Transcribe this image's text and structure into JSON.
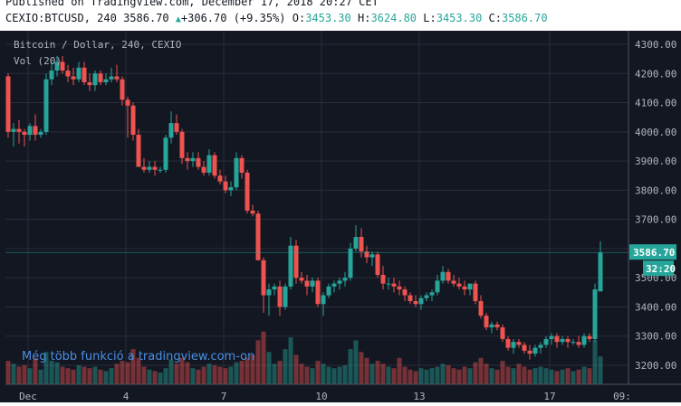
{
  "header": {
    "published": "Published on TradingView.com, December 17, 2018 20:27 CET",
    "symbol": "CEXIO:BTCUSD, 240",
    "last": "3586.70",
    "change": "+306.70 (+9.35%)",
    "o_label": "O:",
    "o": "3453.30",
    "h_label": "H:",
    "h": "3624.80",
    "l_label": "L:",
    "l": "3453.30",
    "c_label": "C:",
    "c": "3586.70"
  },
  "legend": {
    "title": "Bitcoin / Dollar, 240, CEXIO",
    "volume": "Vol (20)"
  },
  "watermark": "Még több funkció a tradingview.com-on",
  "colors": {
    "up": "#26a69a",
    "down": "#ef5350",
    "background": "#131722",
    "grid": "#2a2e39",
    "text": "#b2b5be"
  },
  "chart_data": {
    "type": "candlestick",
    "y_ticks": [
      3200,
      3300,
      3400,
      3500,
      3600,
      3700,
      3800,
      3900,
      4000,
      4100,
      4200,
      4300
    ],
    "y_tick_labels": [
      "3200.00",
      "3300.00",
      "3400.00",
      "3500.00",
      "3600.00",
      "3700.00",
      "3800.00",
      "3900.00",
      "4000.00",
      "4100.00",
      "4200.00",
      "4300.00"
    ],
    "ylim": [
      3135,
      4340
    ],
    "x_tick_labels": [
      "Dec",
      "4",
      "7",
      "10",
      "13",
      "17",
      "09:"
    ],
    "last_price": "3586.70",
    "last_price_value": 3586.7,
    "countdown": "32:20",
    "ohlc": [
      [
        4190,
        4200,
        3980,
        4000
      ],
      [
        4000,
        4030,
        3950,
        4010
      ],
      [
        4010,
        4040,
        3960,
        4000
      ],
      [
        4000,
        4010,
        3950,
        3990
      ],
      [
        3990,
        4030,
        3970,
        4020
      ],
      [
        4020,
        4060,
        3970,
        3990
      ],
      [
        3990,
        4010,
        3980,
        4000
      ],
      [
        4000,
        4200,
        3990,
        4180
      ],
      [
        4180,
        4240,
        4160,
        4210
      ],
      [
        4210,
        4260,
        4190,
        4240
      ],
      [
        4240,
        4260,
        4200,
        4210
      ],
      [
        4210,
        4230,
        4170,
        4190
      ],
      [
        4190,
        4220,
        4160,
        4180
      ],
      [
        4180,
        4240,
        4170,
        4220
      ],
      [
        4220,
        4240,
        4160,
        4170
      ],
      [
        4170,
        4200,
        4140,
        4160
      ],
      [
        4160,
        4210,
        4140,
        4200
      ],
      [
        4200,
        4210,
        4160,
        4170
      ],
      [
        4170,
        4200,
        4160,
        4180
      ],
      [
        4180,
        4220,
        4170,
        4190
      ],
      [
        4190,
        4230,
        4170,
        4180
      ],
      [
        4180,
        4190,
        4090,
        4110
      ],
      [
        4110,
        4120,
        3980,
        4090
      ],
      [
        4090,
        4100,
        3970,
        3990
      ],
      [
        3990,
        4010,
        3880,
        3880
      ],
      [
        3880,
        3910,
        3860,
        3870
      ],
      [
        3870,
        3900,
        3860,
        3880
      ],
      [
        3880,
        3900,
        3850,
        3870
      ],
      [
        3870,
        3880,
        3860,
        3870
      ],
      [
        3870,
        3990,
        3860,
        3980
      ],
      [
        3980,
        4070,
        3960,
        4030
      ],
      [
        4030,
        4060,
        3990,
        4000
      ],
      [
        4000,
        4010,
        3890,
        3910
      ],
      [
        3910,
        3930,
        3870,
        3900
      ],
      [
        3900,
        3930,
        3880,
        3910
      ],
      [
        3910,
        3930,
        3870,
        3880
      ],
      [
        3880,
        3900,
        3850,
        3860
      ],
      [
        3860,
        3940,
        3850,
        3920
      ],
      [
        3920,
        3930,
        3840,
        3850
      ],
      [
        3850,
        3870,
        3820,
        3830
      ],
      [
        3830,
        3850,
        3790,
        3800
      ],
      [
        3800,
        3830,
        3780,
        3810
      ],
      [
        3810,
        3930,
        3800,
        3910
      ],
      [
        3910,
        3920,
        3840,
        3860
      ],
      [
        3860,
        3870,
        3720,
        3730
      ],
      [
        3730,
        3750,
        3710,
        3720
      ],
      [
        3720,
        3730,
        3560,
        3560
      ],
      [
        3560,
        3570,
        3380,
        3440
      ],
      [
        3440,
        3480,
        3370,
        3460
      ],
      [
        3460,
        3480,
        3440,
        3470
      ],
      [
        3470,
        3490,
        3370,
        3400
      ],
      [
        3400,
        3480,
        3390,
        3470
      ],
      [
        3470,
        3640,
        3460,
        3610
      ],
      [
        3610,
        3630,
        3480,
        3500
      ],
      [
        3500,
        3520,
        3480,
        3490
      ],
      [
        3490,
        3510,
        3440,
        3470
      ],
      [
        3470,
        3500,
        3450,
        3490
      ],
      [
        3490,
        3500,
        3400,
        3410
      ],
      [
        3410,
        3450,
        3370,
        3440
      ],
      [
        3440,
        3480,
        3430,
        3470
      ],
      [
        3470,
        3490,
        3450,
        3480
      ],
      [
        3480,
        3500,
        3460,
        3490
      ],
      [
        3490,
        3520,
        3470,
        3500
      ],
      [
        3500,
        3620,
        3490,
        3600
      ],
      [
        3600,
        3680,
        3590,
        3640
      ],
      [
        3640,
        3670,
        3570,
        3590
      ],
      [
        3590,
        3610,
        3550,
        3570
      ],
      [
        3570,
        3590,
        3540,
        3580
      ],
      [
        3580,
        3590,
        3500,
        3510
      ],
      [
        3510,
        3540,
        3460,
        3480
      ],
      [
        3480,
        3500,
        3460,
        3480
      ],
      [
        3480,
        3500,
        3450,
        3470
      ],
      [
        3470,
        3490,
        3440,
        3460
      ],
      [
        3460,
        3470,
        3420,
        3440
      ],
      [
        3440,
        3450,
        3410,
        3420
      ],
      [
        3420,
        3440,
        3400,
        3410
      ],
      [
        3410,
        3440,
        3390,
        3430
      ],
      [
        3430,
        3450,
        3420,
        3440
      ],
      [
        3440,
        3460,
        3420,
        3450
      ],
      [
        3450,
        3510,
        3440,
        3490
      ],
      [
        3490,
        3540,
        3480,
        3520
      ],
      [
        3520,
        3530,
        3480,
        3490
      ],
      [
        3490,
        3510,
        3470,
        3480
      ],
      [
        3480,
        3500,
        3460,
        3470
      ],
      [
        3470,
        3490,
        3440,
        3460
      ],
      [
        3460,
        3480,
        3440,
        3480
      ],
      [
        3480,
        3490,
        3410,
        3420
      ],
      [
        3420,
        3440,
        3360,
        3370
      ],
      [
        3370,
        3380,
        3320,
        3330
      ],
      [
        3330,
        3350,
        3310,
        3340
      ],
      [
        3340,
        3350,
        3320,
        3330
      ],
      [
        3330,
        3340,
        3280,
        3290
      ],
      [
        3290,
        3300,
        3250,
        3260
      ],
      [
        3260,
        3290,
        3240,
        3280
      ],
      [
        3280,
        3290,
        3260,
        3270
      ],
      [
        3270,
        3280,
        3240,
        3250
      ],
      [
        3250,
        3270,
        3220,
        3240
      ],
      [
        3240,
        3270,
        3230,
        3260
      ],
      [
        3260,
        3280,
        3240,
        3270
      ],
      [
        3270,
        3300,
        3260,
        3290
      ],
      [
        3290,
        3310,
        3270,
        3300
      ],
      [
        3300,
        3310,
        3260,
        3280
      ],
      [
        3280,
        3300,
        3270,
        3290
      ],
      [
        3290,
        3300,
        3260,
        3280
      ],
      [
        3280,
        3290,
        3270,
        3280
      ],
      [
        3280,
        3300,
        3260,
        3270
      ],
      [
        3270,
        3310,
        3260,
        3300
      ],
      [
        3300,
        3310,
        3280,
        3290
      ],
      [
        3290,
        3480,
        3280,
        3460
      ],
      [
        3453.3,
        3624.8,
        3453.3,
        3586.7
      ]
    ],
    "volume": [
      80,
      70,
      60,
      65,
      55,
      90,
      50,
      110,
      80,
      75,
      60,
      55,
      50,
      65,
      60,
      55,
      60,
      50,
      45,
      55,
      70,
      80,
      75,
      120,
      90,
      60,
      50,
      45,
      40,
      55,
      85,
      70,
      90,
      75,
      55,
      50,
      60,
      70,
      65,
      60,
      55,
      60,
      75,
      80,
      90,
      100,
      150,
      180,
      110,
      70,
      80,
      120,
      160,
      100,
      70,
      60,
      55,
      80,
      70,
      60,
      55,
      60,
      65,
      120,
      150,
      110,
      90,
      70,
      80,
      70,
      60,
      55,
      90,
      60,
      50,
      45,
      55,
      50,
      55,
      60,
      70,
      65,
      55,
      50,
      60,
      55,
      75,
      90,
      70,
      55,
      50,
      80,
      60,
      55,
      70,
      60,
      50,
      55,
      60,
      55,
      50,
      45,
      50,
      55,
      45,
      50,
      60,
      55,
      150,
      95
    ],
    "vol_max": 185
  }
}
